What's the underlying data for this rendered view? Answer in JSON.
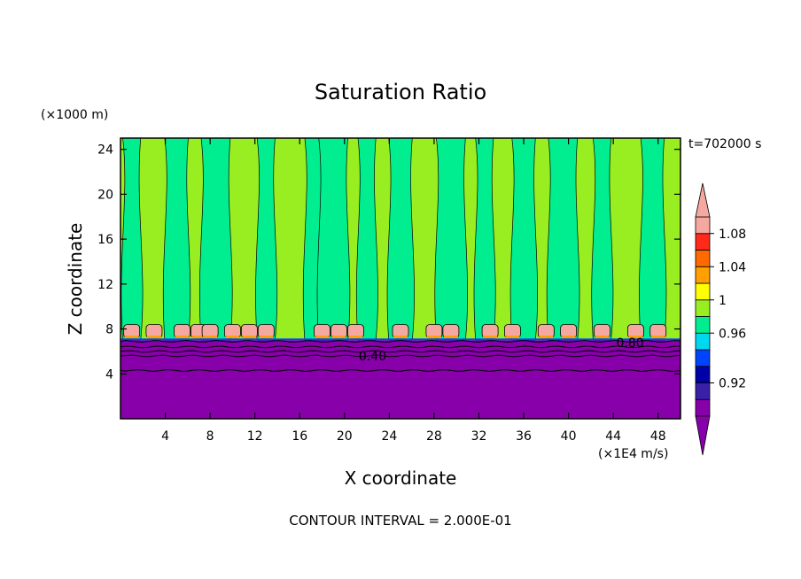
{
  "chart_data": {
    "type": "heatmap",
    "title": "Saturation Ratio",
    "xlabel": "X coordinate",
    "ylabel": "Z coordinate",
    "x_unit": "(×1E4 m/s)",
    "y_unit": "(×1000 m)",
    "time_label": "t=702000 s",
    "footer": "CONTOUR INTERVAL = 2.000E-01",
    "xlim": [
      0,
      50
    ],
    "ylim": [
      0,
      25
    ],
    "xticks": [
      4,
      8,
      12,
      16,
      20,
      24,
      28,
      32,
      36,
      40,
      44,
      48
    ],
    "yticks": [
      4,
      8,
      12,
      16,
      20,
      24
    ],
    "colorbar": {
      "levels": [
        {
          "color": "#8800aa"
        },
        {
          "color": "#3a1fa8",
          "label": "0.92"
        },
        {
          "color": "#0000a8"
        },
        {
          "color": "#0044ff"
        },
        {
          "color": "#00d8f0",
          "label": "0.96"
        },
        {
          "color": "#00ee90"
        },
        {
          "color": "#99ee22",
          "label": "1"
        },
        {
          "color": "#ffff00"
        },
        {
          "color": "#ffa000",
          "label": "1.04"
        },
        {
          "color": "#ff6a00"
        },
        {
          "color": "#ff2a1a",
          "label": "1.08"
        },
        {
          "color": "#f5a8a0"
        }
      ]
    },
    "contour_labels": [
      {
        "text": "0.40",
        "x": 22.5,
        "y": 5.6
      },
      {
        "text": "0.80",
        "x": 45.5,
        "y": 6.8
      }
    ],
    "layers": {
      "dry_layer": {
        "y": [
          0,
          7
        ],
        "value": 0.4,
        "color": "#8800aa"
      },
      "cloud_base": 7,
      "plume_top": 25,
      "columns_x_center": [
        1,
        5,
        8.5,
        13,
        17.5,
        19,
        22,
        25,
        29.5,
        32.5,
        36,
        39.5,
        43,
        47.5
      ],
      "blobs_x": [
        1,
        3,
        5.5,
        7,
        8,
        10,
        11.5,
        13,
        18,
        19.5,
        21,
        25,
        28,
        29.5,
        33,
        35,
        38,
        40,
        43,
        46,
        48
      ],
      "contour_lines_y": [
        4.3,
        5.6,
        6.0,
        6.4,
        6.9
      ]
    }
  }
}
